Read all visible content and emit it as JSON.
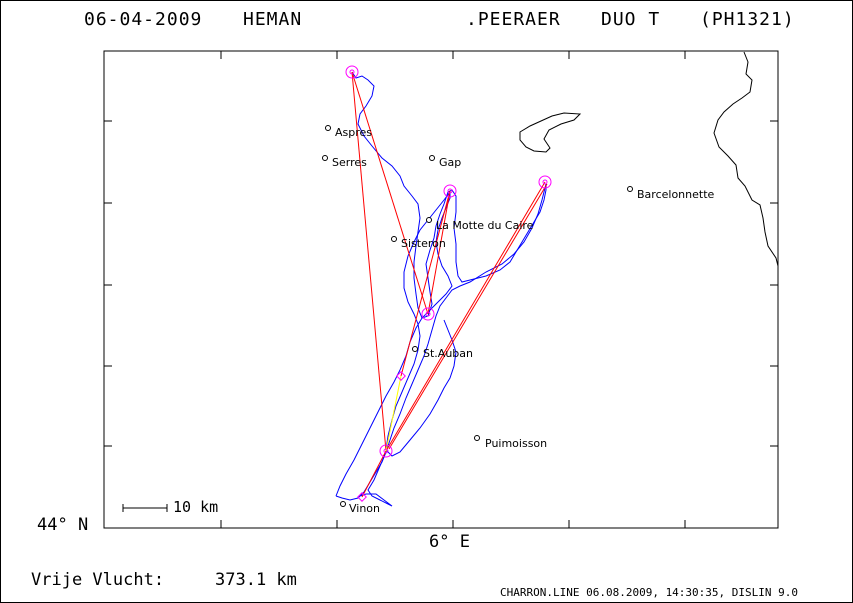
{
  "header": {
    "date": "06-04-2009",
    "pilot": "HEMAN",
    "name": ".PEERAER",
    "glider": "DUO T",
    "registration": "(PH1321)"
  },
  "axes": {
    "lat_label": "44° N",
    "lon_label": "6° E"
  },
  "scale_bar": {
    "label": "10 km"
  },
  "towns": [
    {
      "name": "Aspres"
    },
    {
      "name": "Serres"
    },
    {
      "name": "Gap"
    },
    {
      "name": "Barcelonnette"
    },
    {
      "name": "La Motte du Caire"
    },
    {
      "name": "Sisteron"
    },
    {
      "name": "St.Auban"
    },
    {
      "name": "Puimoisson"
    },
    {
      "name": "Vinon"
    }
  ],
  "footer": {
    "distance_label": "Vrije Vlucht:",
    "distance_value": "373.1 km",
    "credit": "CHARRON.LINE 06.08.2009, 14:30:35, DISLIN 9.0"
  },
  "colors": {
    "track": "#0000ff",
    "task_leg": "#ff0000",
    "final_leg": "#ffff00",
    "turnpoint": "#ff00ff",
    "frame": "#000000"
  }
}
